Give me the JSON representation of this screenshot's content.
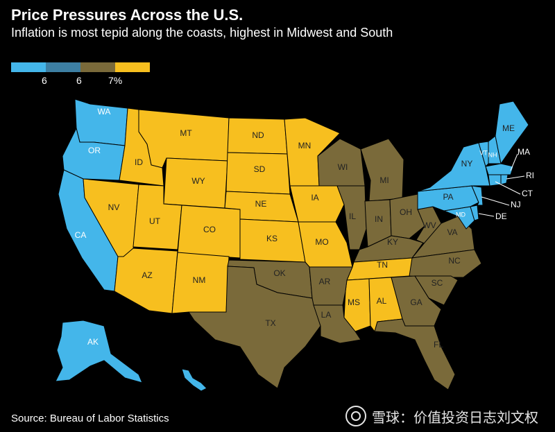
{
  "title": "Price Pressures Across the U.S.",
  "subtitle": "Inflation is most tepid along the coasts, highest in Midwest and South",
  "legend": {
    "colors": [
      "#44b6ea",
      "#3d7fa3",
      "#7a6a3a",
      "#f7bf1f"
    ],
    "labels": [
      "6",
      "6",
      "7%"
    ]
  },
  "source": "Source: Bureau of Labor Statistics",
  "watermark": "雪球：价值投资日志刘文权",
  "regions": {
    "west": {
      "color": "#44b6ea",
      "states": [
        "WA",
        "OR",
        "CA",
        "AK",
        "HI"
      ]
    },
    "mountain": {
      "color": "#f7bf1f",
      "states": [
        "MT",
        "ID",
        "WY",
        "NV",
        "UT",
        "CO",
        "AZ",
        "NM"
      ]
    },
    "westnorthcentral": {
      "color": "#f7bf1f",
      "states": [
        "ND",
        "SD",
        "NE",
        "KS",
        "MN",
        "IA",
        "MO"
      ]
    },
    "eastnorthcentral": {
      "color": "#7a6a3a",
      "states": [
        "WI",
        "MI",
        "IL",
        "IN",
        "OH"
      ]
    },
    "westsouthcentral": {
      "color": "#7a6a3a",
      "states": [
        "OK",
        "TX",
        "AR",
        "LA"
      ]
    },
    "eastsouthcentral": {
      "color": "#f7bf1f",
      "states": [
        "TN",
        "MS",
        "AL",
        "KY"
      ]
    },
    "southatlantic": {
      "color": "#7a6a3a",
      "states": [
        "WV",
        "VA",
        "NC",
        "SC",
        "GA",
        "FL",
        "MD",
        "DE"
      ]
    },
    "northeast": {
      "color": "#44b6ea",
      "states": [
        "ME",
        "VT",
        "NH",
        "MA",
        "NY",
        "PA",
        "NJ",
        "CT",
        "RI"
      ]
    }
  },
  "labels": {
    "WA": "WA",
    "OR": "OR",
    "CA": "CA",
    "AK": "AK",
    "ID": "ID",
    "MT": "MT",
    "WY": "WY",
    "NV": "NV",
    "UT": "UT",
    "CO": "CO",
    "AZ": "AZ",
    "NM": "NM",
    "ND": "ND",
    "SD": "SD",
    "NE": "NE",
    "KS": "KS",
    "MN": "MN",
    "IA": "IA",
    "MO": "MO",
    "OK": "OK",
    "TX": "TX",
    "AR": "AR",
    "LA": "LA",
    "WI": "WI",
    "MI": "MI",
    "IL": "IL",
    "IN": "IN",
    "OH": "OH",
    "KY": "KY",
    "TN": "TN",
    "MS": "MS",
    "AL": "AL",
    "WV": "WV",
    "VA": "VA",
    "NC": "NC",
    "SC": "SC",
    "GA": "GA",
    "FL": "FL",
    "ME": "ME",
    "VT": "VT",
    "NH": "NH",
    "MA": "MA",
    "NY": "NY",
    "PA": "PA",
    "NJ": "NJ",
    "CT": "CT",
    "RI": "RI",
    "MD": "MD",
    "DE": "DE"
  }
}
